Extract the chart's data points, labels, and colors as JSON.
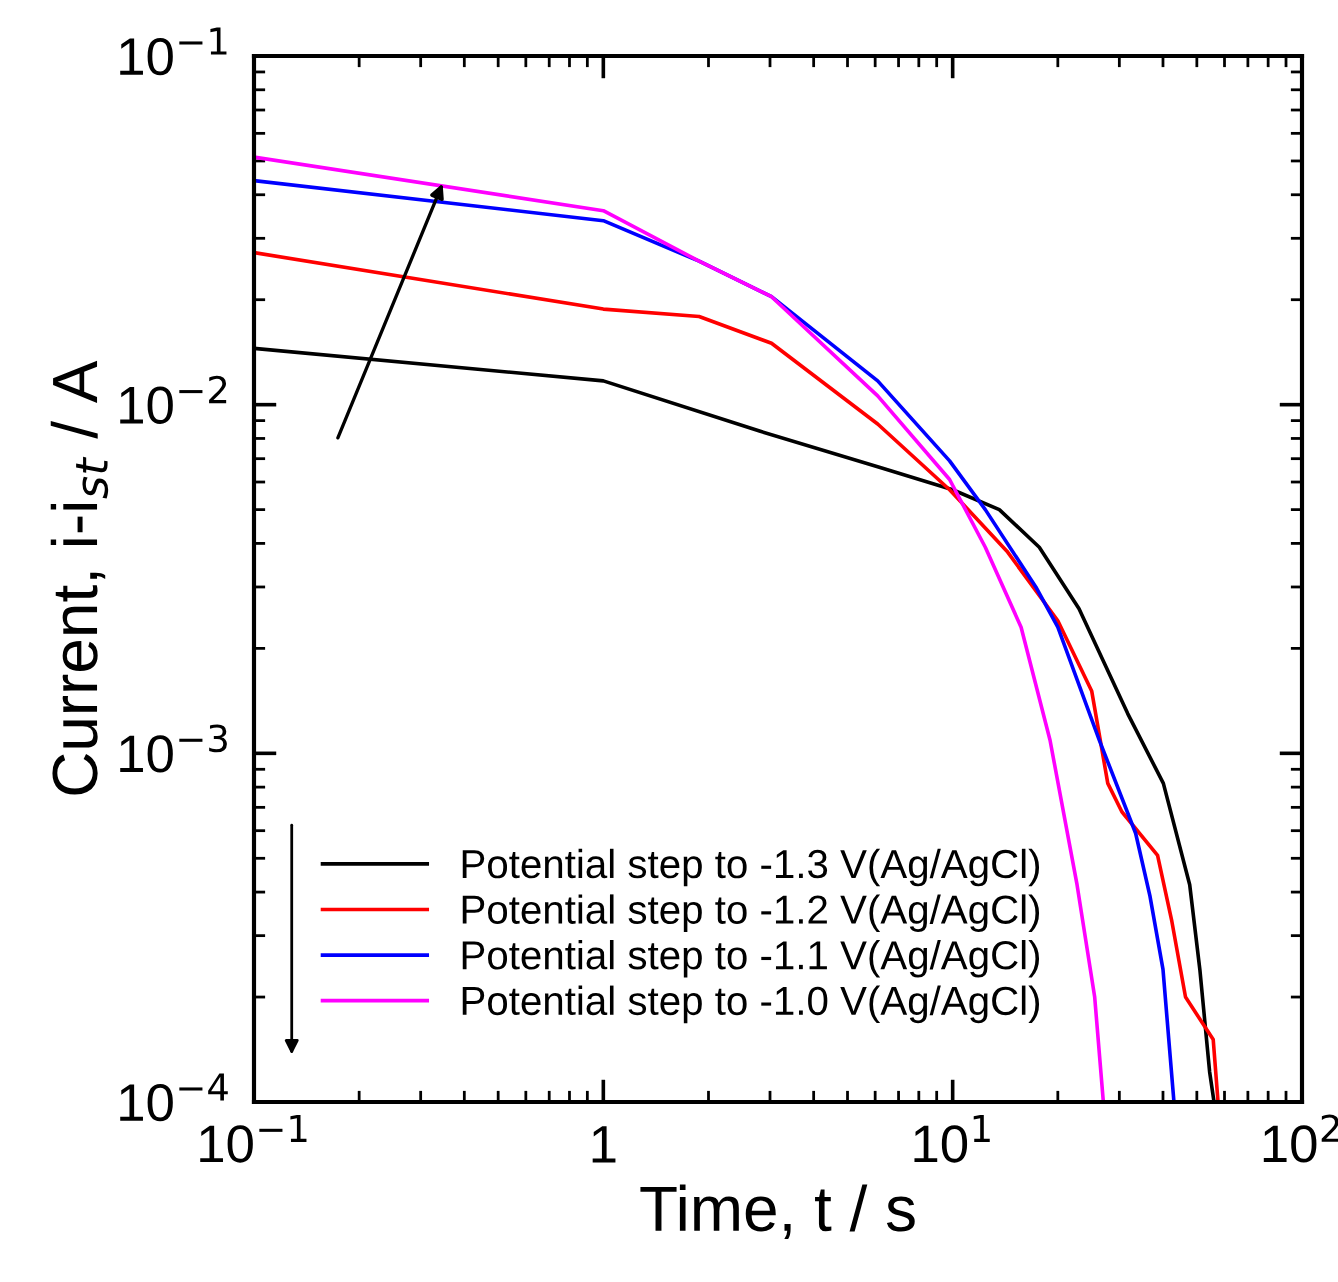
{
  "chart_data": {
    "type": "line",
    "xlabel": "Time, t / s",
    "ylabel": "Current, i-i$_{st}$ / A",
    "log": "xy",
    "grid": false,
    "legend": "bottom left",
    "line_style": "solid",
    "marker": "none",
    "xlim": [
      0.1,
      100
    ],
    "ylim": [
      0.0001,
      0.1
    ],
    "xticks": [
      {
        "value": 0.1,
        "label": "10$^{−1}$"
      },
      1,
      {
        "value": 10,
        "label": "10$^{1}$"
      },
      {
        "value": 100,
        "label": "10$^{2}$"
      }
    ],
    "yticks": [
      {
        "value": 0.0001,
        "label": "10$^{−4}$"
      },
      {
        "value": 0.001,
        "label": "10$^{−3}$"
      },
      {
        "value": 0.01,
        "label": "10$^{−2}$"
      },
      {
        "value": 0.1,
        "label": "10$^{−1}$"
      }
    ],
    "series": [
      {
        "name": "Potential step to -1.3 V(Ag/AgCl)",
        "color": "#000000",
        "x": [
          0.1,
          1,
          2.8,
          6.2,
          10,
          13.6,
          17.7,
          23,
          31.7,
          40.1,
          47.7,
          51,
          54.4,
          56
        ],
        "values": [
          0.0145,
          0.0117,
          0.0084,
          0.0066,
          0.0057,
          0.005,
          0.0039,
          0.0026,
          0.0013,
          0.00082,
          0.00042,
          0.00024,
          0.000122,
          0.0001
        ]
      },
      {
        "name": "Potential step to -1.2 V(Ag/AgCl)",
        "color": "#ff0000",
        "x": [
          0.1,
          1,
          1.88,
          3.03,
          6.1,
          9.8,
          14.3,
          20,
          25,
          27.8,
          30.5,
          38.6,
          42.4,
          46.4,
          55.7,
          57.5
        ],
        "values": [
          0.0273,
          0.0188,
          0.0179,
          0.015,
          0.0088,
          0.0057,
          0.0038,
          0.0024,
          0.00151,
          0.00082,
          0.00068,
          0.00051,
          0.00033,
          0.0002,
          0.000151,
          0.0001
        ]
      },
      {
        "name": "Potential step to -1.1 V(Ag/AgCl)",
        "color": "#0000ff",
        "x": [
          0.1,
          1,
          1.88,
          3.03,
          6.1,
          9.8,
          12.4,
          17.3,
          20,
          26.3,
          33.4,
          36.7,
          40,
          43
        ],
        "values": [
          0.0439,
          0.0337,
          0.0258,
          0.0204,
          0.0117,
          0.0069,
          0.005,
          0.003,
          0.0023,
          0.00109,
          0.00059,
          0.00039,
          0.00024,
          0.0001
        ]
      },
      {
        "name": "Potential step to -1.0 V(Ag/AgCl)",
        "color": "#ff00ff",
        "x": [
          0.1,
          1,
          1.88,
          3.03,
          6.1,
          9.8,
          12.4,
          15.7,
          19,
          22.7,
          25.5,
          27
        ],
        "values": [
          0.0513,
          0.036,
          0.0258,
          0.0204,
          0.0106,
          0.0061,
          0.0039,
          0.0023,
          0.00109,
          0.00042,
          0.0002,
          0.0001
        ]
      }
    ]
  }
}
